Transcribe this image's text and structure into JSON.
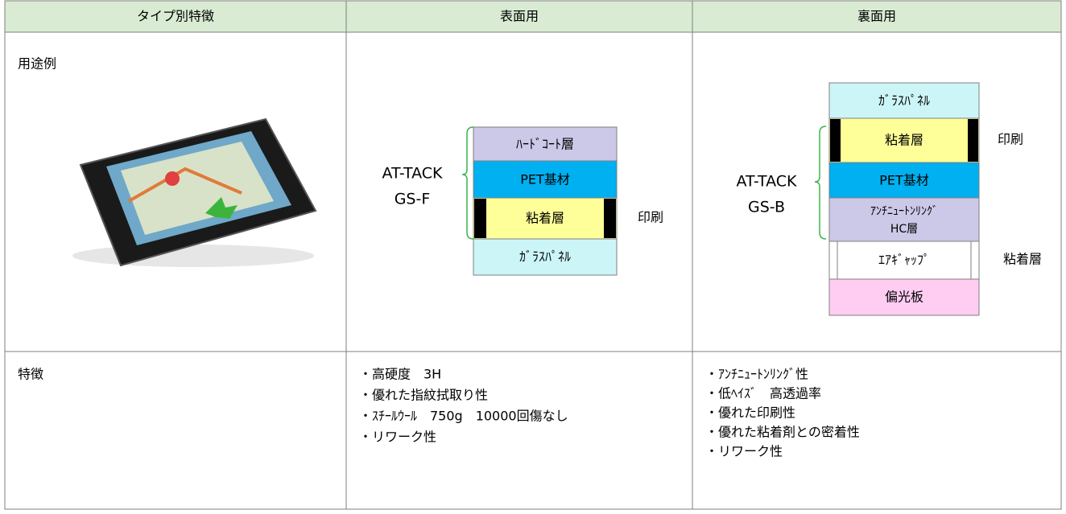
{
  "table": {
    "header": [
      "タイプ別特徴",
      "表面用",
      "裏面用"
    ],
    "rows": [
      {
        "label": "用途例"
      },
      {
        "label": "特徴",
        "front": [
          "・高硬度　3H",
          "・優れた指紋拭取り性",
          "・ｽﾁｰﾙｳｰﾙ　750g　10000回傷なし",
          "・リワーク性"
        ],
        "back": [
          "・ｱﾝﾁﾆｭｰﾄﾝﾘﾝｸﾞ性",
          "・低ﾍｲｽﾞ　高透過率",
          "・優れた印刷性",
          "・優れた粘着剤との密着性",
          "・リワーク性"
        ]
      }
    ]
  },
  "front_diagram": {
    "product": [
      "AT-TACK",
      "GS-F"
    ],
    "layers": [
      "ﾊｰﾄﾞｺｰﾄ層",
      "PET基材",
      "粘着層",
      "ｶﾞﾗｽﾊﾟﾈﾙ"
    ],
    "side_labels": [
      "印刷"
    ]
  },
  "back_diagram": {
    "product": [
      "AT-TACK",
      "GS-B"
    ],
    "layers": [
      "ｶﾞﾗｽﾊﾟﾈﾙ",
      "粘着層",
      "PET基材",
      [
        "ｱﾝﾁﾆｭｰﾄﾝﾘﾝｸﾞ",
        "HC層"
      ],
      "ｴｱｷﾞｬｯﾌﾟ",
      "偏光板"
    ],
    "side_labels": [
      "印刷",
      "粘着層"
    ]
  }
}
